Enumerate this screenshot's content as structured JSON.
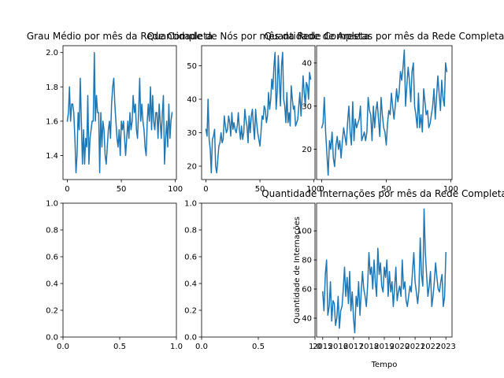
{
  "colors": {
    "series": "#1f77b4",
    "frame": "#000000",
    "background": "#ffffff"
  },
  "chart_data": [
    {
      "id": "grau-medio",
      "type": "line",
      "title": "Grau Médio por mês da Rede Completa",
      "xlabel": "",
      "ylabel": "",
      "xlim": [
        -4,
        101
      ],
      "ylim": [
        1.26,
        2.04
      ],
      "xticks": [
        0,
        50,
        100
      ],
      "yticks": [
        1.4,
        1.6,
        1.8,
        2.0
      ],
      "ytick_format": 1,
      "series": [
        {
          "values": [
            1.6,
            1.65,
            1.8,
            1.6,
            1.7,
            1.7,
            1.65,
            1.5,
            1.3,
            1.4,
            1.65,
            1.55,
            1.85,
            1.6,
            1.35,
            1.55,
            1.35,
            1.5,
            1.45,
            1.75,
            1.35,
            1.5,
            1.55,
            1.6,
            1.6,
            2.0,
            1.6,
            1.75,
            1.65,
            1.65,
            1.3,
            1.65,
            1.45,
            1.6,
            1.55,
            1.4,
            1.35,
            1.45,
            1.55,
            1.6,
            1.5,
            1.7,
            1.8,
            1.85,
            1.7,
            1.6,
            1.5,
            1.45,
            1.55,
            1.4,
            1.6,
            1.55,
            1.6,
            1.5,
            1.4,
            1.5,
            1.6,
            1.5,
            1.65,
            1.55,
            1.6,
            1.75,
            1.65,
            1.7,
            1.55,
            1.5,
            1.65,
            1.85,
            1.6,
            1.7,
            1.6,
            1.55,
            1.45,
            1.4,
            1.6,
            1.7,
            1.6,
            1.8,
            1.55,
            1.75,
            1.6,
            1.55,
            1.65,
            1.65,
            1.5,
            1.7,
            1.6,
            1.5,
            1.65,
            1.75,
            1.35,
            1.5,
            1.6,
            1.45,
            1.7,
            1.5,
            1.6,
            1.65
          ]
        }
      ]
    },
    {
      "id": "quantidade-nos",
      "type": "line",
      "title": "Quantidade de Nós por mês da Rede Completa",
      "xlabel": "",
      "ylabel": "",
      "xlim": [
        -4,
        101
      ],
      "ylim": [
        16,
        56
      ],
      "xticks": [
        0,
        50,
        100
      ],
      "yticks": [
        20,
        30,
        40,
        50
      ],
      "ytick_format": 0,
      "series": [
        {
          "values": [
            31,
            29,
            40,
            28,
            25,
            18,
            28,
            29,
            31,
            20,
            18,
            22,
            26,
            27,
            30,
            27,
            28,
            35,
            32,
            30,
            31,
            35,
            33,
            29,
            36,
            31,
            33,
            31,
            30,
            32,
            36,
            31,
            28,
            32,
            28,
            30,
            37,
            34,
            32,
            27,
            35,
            30,
            35,
            37,
            32,
            28,
            37,
            33,
            30,
            28,
            26,
            30,
            35,
            34,
            38,
            37,
            33,
            35,
            42,
            37,
            40,
            46,
            43,
            50,
            54,
            37,
            42,
            53,
            46,
            38,
            50,
            54,
            40,
            38,
            33,
            42,
            33,
            36,
            32,
            44,
            40,
            37,
            38,
            32,
            33,
            34,
            38,
            42,
            35,
            40,
            47,
            42,
            38,
            45,
            44,
            40,
            48,
            46
          ]
        }
      ]
    },
    {
      "id": "quantidade-arestas",
      "type": "line",
      "title": "Quantidade de Arestas por mês da Rede Completa",
      "xlabel": "",
      "ylabel": "",
      "xlim": [
        -4,
        101
      ],
      "ylim": [
        13,
        44
      ],
      "xticks": [
        0,
        50,
        100
      ],
      "yticks": [
        20,
        30,
        40
      ],
      "ytick_format": 0,
      "series": [
        {
          "values": [
            25,
            26,
            32,
            24,
            19,
            14,
            22,
            20,
            24,
            18,
            16,
            21,
            23,
            20,
            22,
            18,
            22,
            25,
            23,
            21,
            26,
            30,
            24,
            21,
            31,
            22,
            27,
            25,
            26,
            27,
            30,
            22,
            23,
            24,
            22,
            24,
            32,
            29,
            28,
            22,
            30,
            25,
            29,
            31,
            27,
            23,
            32,
            28,
            25,
            24,
            21,
            26,
            29,
            28,
            33,
            30,
            27,
            30,
            34,
            31,
            33,
            38,
            36,
            39,
            43,
            30,
            35,
            39,
            36,
            31,
            38,
            40,
            30,
            28,
            25,
            33,
            25,
            28,
            24,
            34,
            31,
            28,
            29,
            25,
            26,
            28,
            30,
            34,
            27,
            32,
            37,
            33,
            29,
            36,
            32,
            30,
            40,
            38
          ]
        }
      ]
    },
    {
      "id": "empty-1",
      "type": "line",
      "title": "",
      "xlabel": "",
      "ylabel": "",
      "xlim": [
        0,
        1
      ],
      "ylim": [
        0,
        1
      ],
      "xticks": [
        0.0,
        0.5,
        1.0
      ],
      "yticks": [
        0.0,
        0.2,
        0.4,
        0.6,
        0.8,
        1.0
      ],
      "xtick_format": 1,
      "ytick_format": 1,
      "series": []
    },
    {
      "id": "empty-2",
      "type": "line",
      "title": "",
      "xlabel": "",
      "ylabel": "",
      "xlim": [
        0,
        1
      ],
      "ylim": [
        0,
        1
      ],
      "xticks": [
        0.0,
        0.5,
        1.0
      ],
      "yticks": [
        0.0,
        0.2,
        0.4,
        0.6,
        0.8,
        1.0
      ],
      "xtick_format": 1,
      "ytick_format": 1,
      "series": []
    },
    {
      "id": "internacoes",
      "type": "line",
      "title": "Quantidade Internações por mês da Rede Completa",
      "xlabel": "Tempo",
      "ylabel": "Quantidade de Internações",
      "xlim": [
        2014.6,
        2023.4
      ],
      "ylim": [
        27,
        119
      ],
      "xticks": [
        2015,
        2016,
        2017,
        2018,
        2019,
        2020,
        2021,
        2022,
        2023
      ],
      "yticks": [
        40,
        60,
        80,
        100
      ],
      "ytick_format": 0,
      "x": [
        2015.0,
        2015.083,
        2015.167,
        2015.25,
        2015.333,
        2015.417,
        2015.5,
        2015.583,
        2015.667,
        2015.75,
        2015.833,
        2015.917,
        2016.0,
        2016.083,
        2016.167,
        2016.25,
        2016.333,
        2016.417,
        2016.5,
        2016.583,
        2016.667,
        2016.75,
        2016.833,
        2016.917,
        2017.0,
        2017.083,
        2017.167,
        2017.25,
        2017.333,
        2017.417,
        2017.5,
        2017.583,
        2017.667,
        2017.75,
        2017.833,
        2017.917,
        2018.0,
        2018.083,
        2018.167,
        2018.25,
        2018.333,
        2018.417,
        2018.5,
        2018.583,
        2018.667,
        2018.75,
        2018.833,
        2018.917,
        2019.0,
        2019.083,
        2019.167,
        2019.25,
        2019.333,
        2019.417,
        2019.5,
        2019.583,
        2019.667,
        2019.75,
        2019.833,
        2019.917,
        2020.0,
        2020.083,
        2020.167,
        2020.25,
        2020.333,
        2020.417,
        2020.5,
        2020.583,
        2020.667,
        2020.75,
        2020.833,
        2020.917,
        2021.0,
        2021.083,
        2021.167,
        2021.25,
        2021.333,
        2021.417,
        2021.5,
        2021.583,
        2021.667,
        2021.75,
        2021.833,
        2021.917,
        2022.0,
        2022.083,
        2022.167,
        2022.25,
        2022.333,
        2022.417,
        2022.5,
        2022.583,
        2022.667,
        2022.75,
        2022.833,
        2022.917,
        2023.0
      ],
      "series": [
        {
          "values": [
            58,
            45,
            70,
            80,
            42,
            48,
            65,
            38,
            52,
            50,
            35,
            40,
            55,
            33,
            45,
            48,
            60,
            75,
            55,
            68,
            50,
            72,
            45,
            58,
            40,
            30,
            55,
            48,
            65,
            42,
            58,
            72,
            60,
            55,
            48,
            62,
            85,
            70,
            75,
            60,
            80,
            65,
            55,
            88,
            70,
            78,
            62,
            58,
            75,
            68,
            80,
            55,
            72,
            58,
            65,
            48,
            60,
            75,
            52,
            58,
            62,
            55,
            80,
            60,
            65,
            52,
            48,
            55,
            62,
            58,
            72,
            85,
            65,
            58,
            50,
            60,
            95,
            70,
            62,
            115,
            85,
            70,
            55,
            62,
            72,
            48,
            55,
            65,
            78,
            68,
            60,
            58,
            65,
            70,
            48,
            55,
            85
          ]
        }
      ]
    }
  ]
}
